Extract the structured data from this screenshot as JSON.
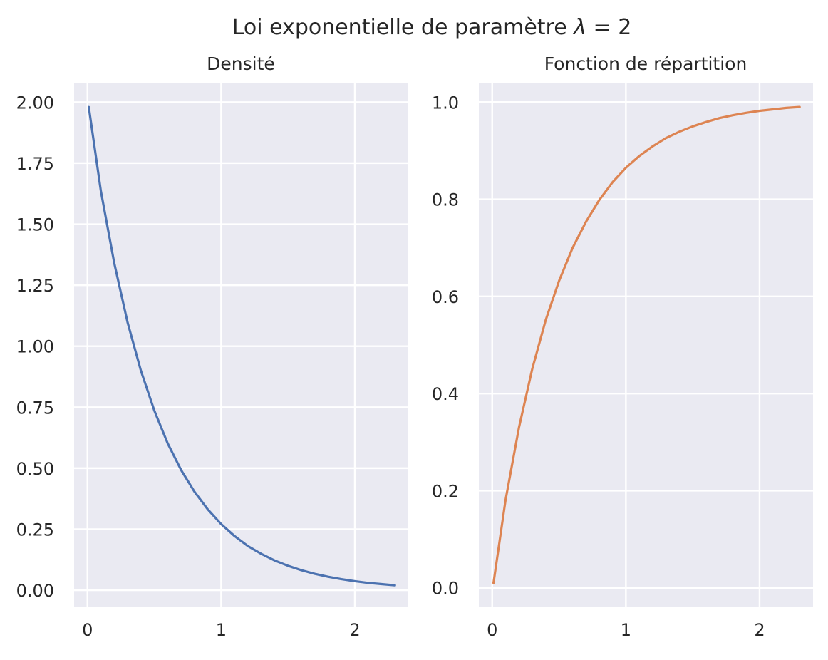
{
  "figure": {
    "title_prefix": "Loi exponentielle de paramètre ",
    "title_lambda": "λ",
    "title_suffix": " = 2"
  },
  "chart_data": [
    {
      "type": "line",
      "title": "Densité",
      "xlabel": "",
      "ylabel": "",
      "xlim": [
        -0.1,
        2.4
      ],
      "ylim": [
        -0.07,
        2.08
      ],
      "xticks": [
        0,
        1,
        2
      ],
      "xtick_labels": [
        "0",
        "1",
        "2"
      ],
      "yticks": [
        0,
        0.25,
        0.5,
        0.75,
        1,
        1.25,
        1.5,
        1.75,
        2
      ],
      "ytick_labels": [
        "0.00",
        "0.25",
        "0.50",
        "0.75",
        "1.00",
        "1.25",
        "1.50",
        "1.75",
        "2.00"
      ],
      "grid": true,
      "series": [
        {
          "color": "#4c72b0",
          "x": [
            0.01,
            0.1,
            0.2,
            0.3,
            0.4,
            0.5,
            0.6,
            0.7,
            0.8,
            0.9,
            1.0,
            1.1,
            1.2,
            1.3,
            1.4,
            1.5,
            1.6,
            1.7,
            1.8,
            1.9,
            2.0,
            2.1,
            2.2,
            2.3
          ],
          "y": [
            1.98,
            1.637,
            1.341,
            1.098,
            0.899,
            0.736,
            0.602,
            0.493,
            0.404,
            0.331,
            0.271,
            0.222,
            0.181,
            0.149,
            0.122,
            0.1,
            0.082,
            0.067,
            0.055,
            0.045,
            0.037,
            0.03,
            0.025,
            0.02
          ]
        }
      ]
    },
    {
      "type": "line",
      "title": "Fonction de répartition",
      "xlabel": "",
      "ylabel": "",
      "xlim": [
        -0.1,
        2.4
      ],
      "ylim": [
        -0.04,
        1.04
      ],
      "xticks": [
        0,
        1,
        2
      ],
      "xtick_labels": [
        "0",
        "1",
        "2"
      ],
      "yticks": [
        0,
        0.2,
        0.4,
        0.6,
        0.8,
        1.0
      ],
      "ytick_labels": [
        "0.0",
        "0.2",
        "0.4",
        "0.6",
        "0.8",
        "1.0"
      ],
      "grid": true,
      "series": [
        {
          "color": "#dd8452",
          "x": [
            0.01,
            0.1,
            0.2,
            0.3,
            0.4,
            0.5,
            0.6,
            0.7,
            0.8,
            0.9,
            1.0,
            1.1,
            1.2,
            1.3,
            1.4,
            1.5,
            1.6,
            1.7,
            1.8,
            1.9,
            2.0,
            2.1,
            2.2,
            2.3
          ],
          "y": [
            0.01,
            0.181,
            0.33,
            0.451,
            0.551,
            0.632,
            0.699,
            0.753,
            0.798,
            0.835,
            0.865,
            0.889,
            0.909,
            0.926,
            0.939,
            0.95,
            0.959,
            0.967,
            0.973,
            0.978,
            0.982,
            0.985,
            0.988,
            0.99
          ]
        }
      ]
    }
  ]
}
